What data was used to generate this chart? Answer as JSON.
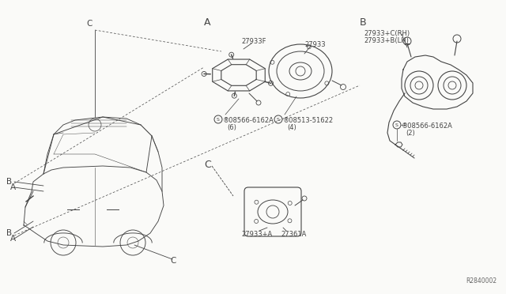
{
  "bg_color": "#FAFAF8",
  "line_color": "#444444",
  "text_color": "#444444",
  "diagram_ref": "R2840002",
  "labels": {
    "part_27933F": "27933F",
    "part_27933": "27933",
    "part_27933plus": "27933+A",
    "part_27361A": "27361A",
    "part_27933C_RH": "27933+C(RH)",
    "part_27933B_LH": "27933+B(LH)",
    "bolt_6162A_6": "®08566-6162A\n(6)",
    "bolt_51622_4": "®08513-51622\n(4)",
    "bolt_6162A_2": "®08566-6162A\n(2)"
  },
  "font_size_small": 6.0,
  "font_size_label": 7.5,
  "font_size_section": 9
}
